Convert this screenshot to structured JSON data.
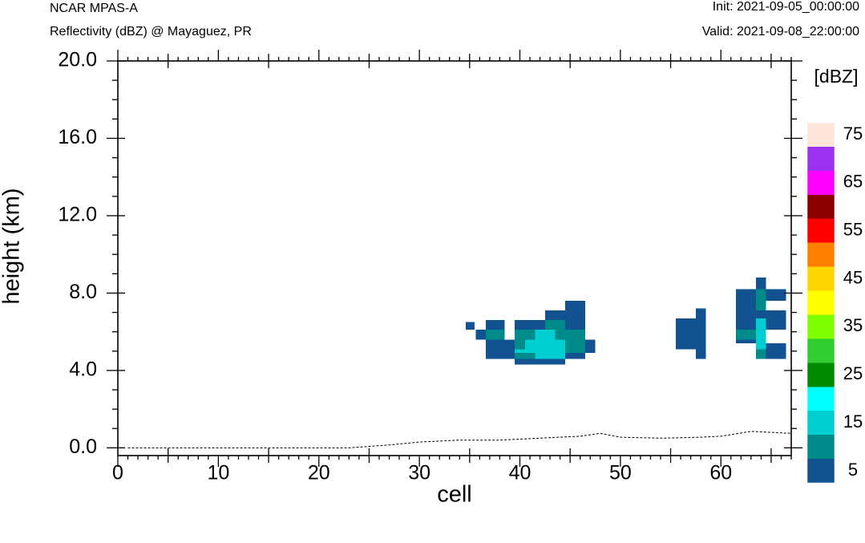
{
  "header": {
    "model": "NCAR MPAS-A",
    "subtitle": "Reflectivity (dBZ) @ Mayaguez, PR",
    "init": "Init: 2021-09-05_00:00:00",
    "valid": "Valid: 2021-09-08_22:00:00"
  },
  "chart_data": {
    "type": "heatmap",
    "title": "Reflectivity (dBZ) @ Mayaguez, PR",
    "xlabel": "cell",
    "ylabel": "height (km)",
    "xlim": [
      0,
      67
    ],
    "ylim": [
      -0.4,
      20.0
    ],
    "x_ticks": [
      0,
      10,
      20,
      30,
      40,
      50,
      60
    ],
    "y_ticks": [
      0.0,
      4.0,
      8.0,
      12.0,
      16.0,
      20.0
    ],
    "y_tick_labels": [
      "0.0",
      "4.0",
      "8.0",
      "12.0",
      "16.0",
      "20.0"
    ],
    "colorbar": {
      "units": "[dBZ]",
      "levels": [
        5,
        10,
        15,
        20,
        25,
        30,
        35,
        40,
        45,
        50,
        55,
        60,
        65,
        70,
        75
      ],
      "labels": [
        "5",
        "15",
        "25",
        "35",
        "45",
        "55",
        "65",
        "75"
      ],
      "colors": [
        "#125291",
        "#008b8b",
        "#00ced1",
        "#00ffff",
        "#008b00",
        "#32cd32",
        "#7fff00",
        "#ffff00",
        "#ffd700",
        "#ff8000",
        "#ff0000",
        "#8b0000",
        "#ff00ff",
        "#9a32f0",
        "#ffe4d9"
      ]
    },
    "cells": [
      {
        "x0": 34.6,
        "x1": 35.5,
        "y0": 6.1,
        "y1": 6.5,
        "dbz": 5
      },
      {
        "x0": 36.6,
        "x1": 38.5,
        "y0": 6.1,
        "y1": 6.6,
        "dbz": 5
      },
      {
        "x0": 35.6,
        "x1": 36.6,
        "y0": 5.6,
        "y1": 6.1,
        "dbz": 5
      },
      {
        "x0": 36.6,
        "x1": 38.5,
        "y0": 5.6,
        "y1": 6.1,
        "dbz": 10
      },
      {
        "x0": 36.6,
        "x1": 39.5,
        "y0": 4.6,
        "y1": 5.6,
        "dbz": 5
      },
      {
        "x0": 39.5,
        "x1": 42.5,
        "y0": 6.1,
        "y1": 6.6,
        "dbz": 5
      },
      {
        "x0": 42.5,
        "x1": 46.5,
        "y0": 6.6,
        "y1": 7.1,
        "dbz": 5
      },
      {
        "x0": 44.5,
        "x1": 46.5,
        "y0": 7.1,
        "y1": 7.6,
        "dbz": 5
      },
      {
        "x0": 42.5,
        "x1": 44.5,
        "y0": 6.1,
        "y1": 6.6,
        "dbz": 10
      },
      {
        "x0": 44.5,
        "x1": 46.5,
        "y0": 6.1,
        "y1": 6.6,
        "dbz": 5
      },
      {
        "x0": 39.5,
        "x1": 41.5,
        "y0": 5.6,
        "y1": 6.1,
        "dbz": 10
      },
      {
        "x0": 41.5,
        "x1": 43.5,
        "y0": 5.6,
        "y1": 6.1,
        "dbz": 15
      },
      {
        "x0": 43.5,
        "x1": 44.5,
        "y0": 5.6,
        "y1": 6.1,
        "dbz": 10
      },
      {
        "x0": 44.5,
        "x1": 46.5,
        "y0": 5.6,
        "y1": 6.1,
        "dbz": 10
      },
      {
        "x0": 39.5,
        "x1": 40.5,
        "y0": 5.1,
        "y1": 5.6,
        "dbz": 10
      },
      {
        "x0": 40.5,
        "x1": 44.5,
        "y0": 5.1,
        "y1": 5.6,
        "dbz": 15
      },
      {
        "x0": 44.5,
        "x1": 46.5,
        "y0": 5.1,
        "y1": 5.6,
        "dbz": 10
      },
      {
        "x0": 46.5,
        "x1": 47.5,
        "y0": 4.9,
        "y1": 5.6,
        "dbz": 5
      },
      {
        "x0": 39.5,
        "x1": 41.5,
        "y0": 4.9,
        "y1": 5.1,
        "dbz": 15
      },
      {
        "x0": 41.5,
        "x1": 44.5,
        "y0": 4.6,
        "y1": 5.1,
        "dbz": 15
      },
      {
        "x0": 44.5,
        "x1": 46.5,
        "y0": 4.9,
        "y1": 5.1,
        "dbz": 10
      },
      {
        "x0": 39.5,
        "x1": 41.5,
        "y0": 4.6,
        "y1": 4.9,
        "dbz": 10
      },
      {
        "x0": 44.5,
        "x1": 46.5,
        "y0": 4.6,
        "y1": 4.9,
        "dbz": 5
      },
      {
        "x0": 39.5,
        "x1": 44.5,
        "y0": 4.3,
        "y1": 4.6,
        "dbz": 5
      },
      {
        "x0": 55.5,
        "x1": 57.5,
        "y0": 5.1,
        "y1": 6.7,
        "dbz": 5
      },
      {
        "x0": 57.5,
        "x1": 58.5,
        "y0": 4.6,
        "y1": 7.2,
        "dbz": 5
      },
      {
        "x0": 61.5,
        "x1": 63.5,
        "y0": 6.6,
        "y1": 8.2,
        "dbz": 5
      },
      {
        "x0": 63.5,
        "x1": 64.5,
        "y0": 8.2,
        "y1": 8.8,
        "dbz": 5
      },
      {
        "x0": 63.5,
        "x1": 64.5,
        "y0": 7.1,
        "y1": 8.2,
        "dbz": 10
      },
      {
        "x0": 64.5,
        "x1": 66.5,
        "y0": 7.6,
        "y1": 8.2,
        "dbz": 5
      },
      {
        "x0": 63.5,
        "x1": 64.5,
        "y0": 6.7,
        "y1": 7.1,
        "dbz": 5
      },
      {
        "x0": 61.5,
        "x1": 63.5,
        "y0": 6.1,
        "y1": 6.6,
        "dbz": 5
      },
      {
        "x0": 64.5,
        "x1": 66.5,
        "y0": 6.1,
        "y1": 7.1,
        "dbz": 5
      },
      {
        "x0": 61.5,
        "x1": 63.5,
        "y0": 5.6,
        "y1": 6.1,
        "dbz": 10
      },
      {
        "x0": 61.5,
        "x1": 63.5,
        "y0": 5.4,
        "y1": 5.6,
        "dbz": 5
      },
      {
        "x0": 63.5,
        "x1": 64.5,
        "y0": 5.1,
        "y1": 6.7,
        "dbz": 15
      },
      {
        "x0": 63.5,
        "x1": 64.5,
        "y0": 4.6,
        "y1": 5.1,
        "dbz": 10
      },
      {
        "x0": 64.5,
        "x1": 66.5,
        "y0": 4.6,
        "y1": 5.4,
        "dbz": 5
      }
    ],
    "terrain": [
      [
        1,
        0.0
      ],
      [
        23,
        0.0
      ],
      [
        27,
        0.15
      ],
      [
        30,
        0.3
      ],
      [
        34,
        0.4
      ],
      [
        38,
        0.4
      ],
      [
        42,
        0.5
      ],
      [
        46,
        0.6
      ],
      [
        48,
        0.75
      ],
      [
        50,
        0.55
      ],
      [
        54,
        0.5
      ],
      [
        58,
        0.55
      ],
      [
        60,
        0.6
      ],
      [
        63,
        0.85
      ],
      [
        65,
        0.8
      ],
      [
        67,
        0.75
      ]
    ]
  }
}
